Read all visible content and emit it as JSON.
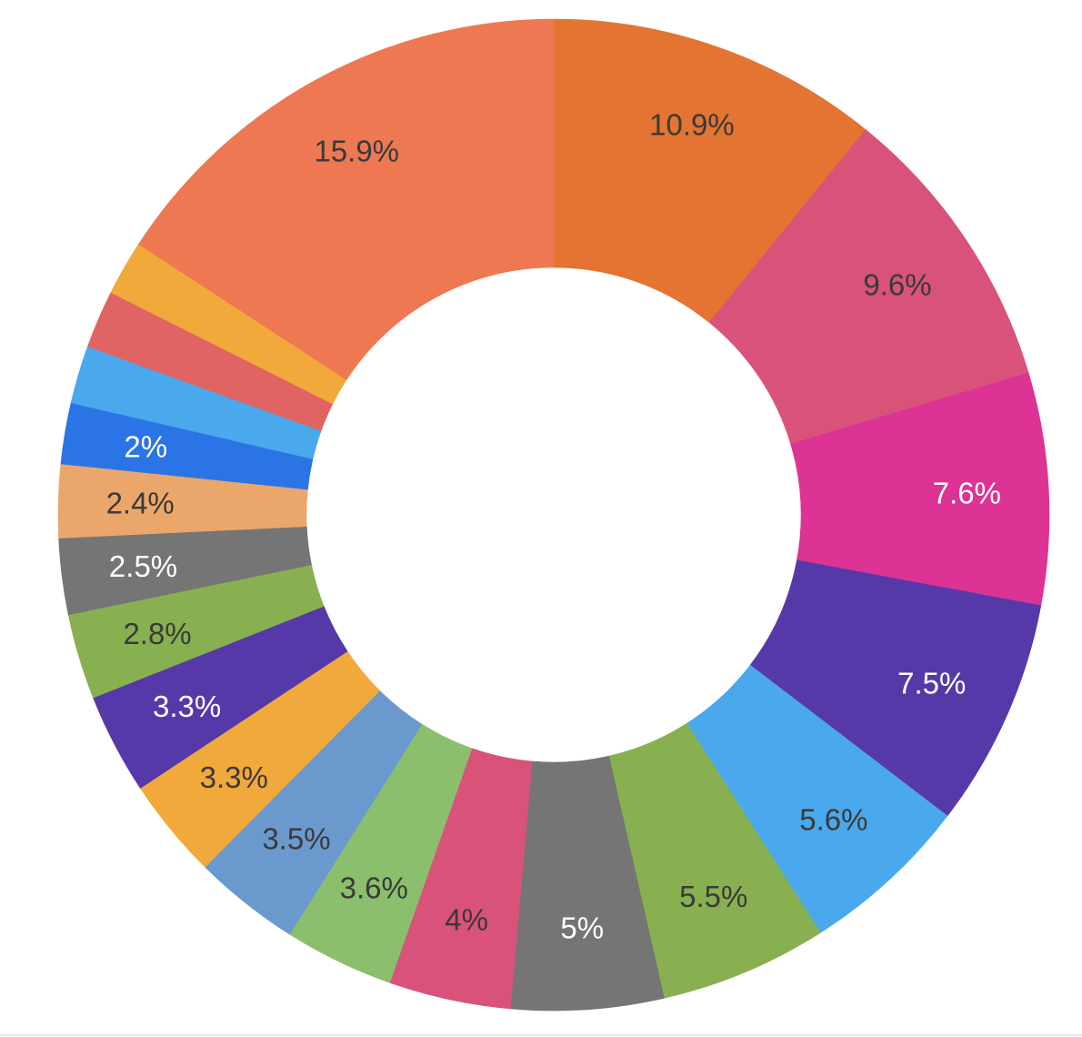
{
  "chart_data": {
    "type": "pie",
    "variant": "donut",
    "labels_shown": "percent",
    "start": "top",
    "direction": "clockwise",
    "slices": [
      {
        "value": 10.9,
        "label": "10.9%",
        "color": "#e37431",
        "label_color": "#3a3a3a"
      },
      {
        "value": 9.6,
        "label": "9.6%",
        "color": "#d9527a",
        "label_color": "#3a3a3a"
      },
      {
        "value": 7.6,
        "label": "7.6%",
        "color": "#dc3394",
        "label_color": "#ffffff"
      },
      {
        "value": 7.5,
        "label": "7.5%",
        "color": "#5639a8",
        "label_color": "#ffffff"
      },
      {
        "value": 5.6,
        "label": "5.6%",
        "color": "#4aa8ec",
        "label_color": "#3a3a3a"
      },
      {
        "value": 5.5,
        "label": "5.5%",
        "color": "#88b050",
        "label_color": "#3a3a3a"
      },
      {
        "value": 5.0,
        "label": "5%",
        "color": "#757575",
        "label_color": "#ffffff"
      },
      {
        "value": 4.0,
        "label": "4%",
        "color": "#d9527a",
        "label_color": "#3a3a3a"
      },
      {
        "value": 3.6,
        "label": "3.6%",
        "color": "#8bbf6e",
        "label_color": "#3a3a3a"
      },
      {
        "value": 3.5,
        "label": "3.5%",
        "color": "#6a9acd",
        "label_color": "#3a3a3a"
      },
      {
        "value": 3.3,
        "label": "3.3%",
        "color": "#f1a93c",
        "label_color": "#3a3a3a"
      },
      {
        "value": 3.3,
        "label": "3.3%",
        "color": "#5639a8",
        "label_color": "#ffffff"
      },
      {
        "value": 2.8,
        "label": "2.8%",
        "color": "#88b050",
        "label_color": "#3a3a3a"
      },
      {
        "value": 2.5,
        "label": "2.5%",
        "color": "#757575",
        "label_color": "#ffffff"
      },
      {
        "value": 2.4,
        "label": "2.4%",
        "color": "#eba76b",
        "label_color": "#3a3a3a"
      },
      {
        "value": 2.0,
        "label": "2%",
        "color": "#2b74e6",
        "label_color": "#ffffff"
      },
      {
        "value": 1.9,
        "label": "",
        "color": "#4aa8ec",
        "label_color": "#3a3a3a"
      },
      {
        "value": 1.9,
        "label": "",
        "color": "#e06464",
        "label_color": "#3a3a3a"
      },
      {
        "value": 1.8,
        "label": "",
        "color": "#f1a93c",
        "label_color": "#3a3a3a"
      },
      {
        "value": 15.9,
        "label": "15.9%",
        "color": "#ed7851",
        "label_color": "#3a3a3a"
      }
    ]
  }
}
